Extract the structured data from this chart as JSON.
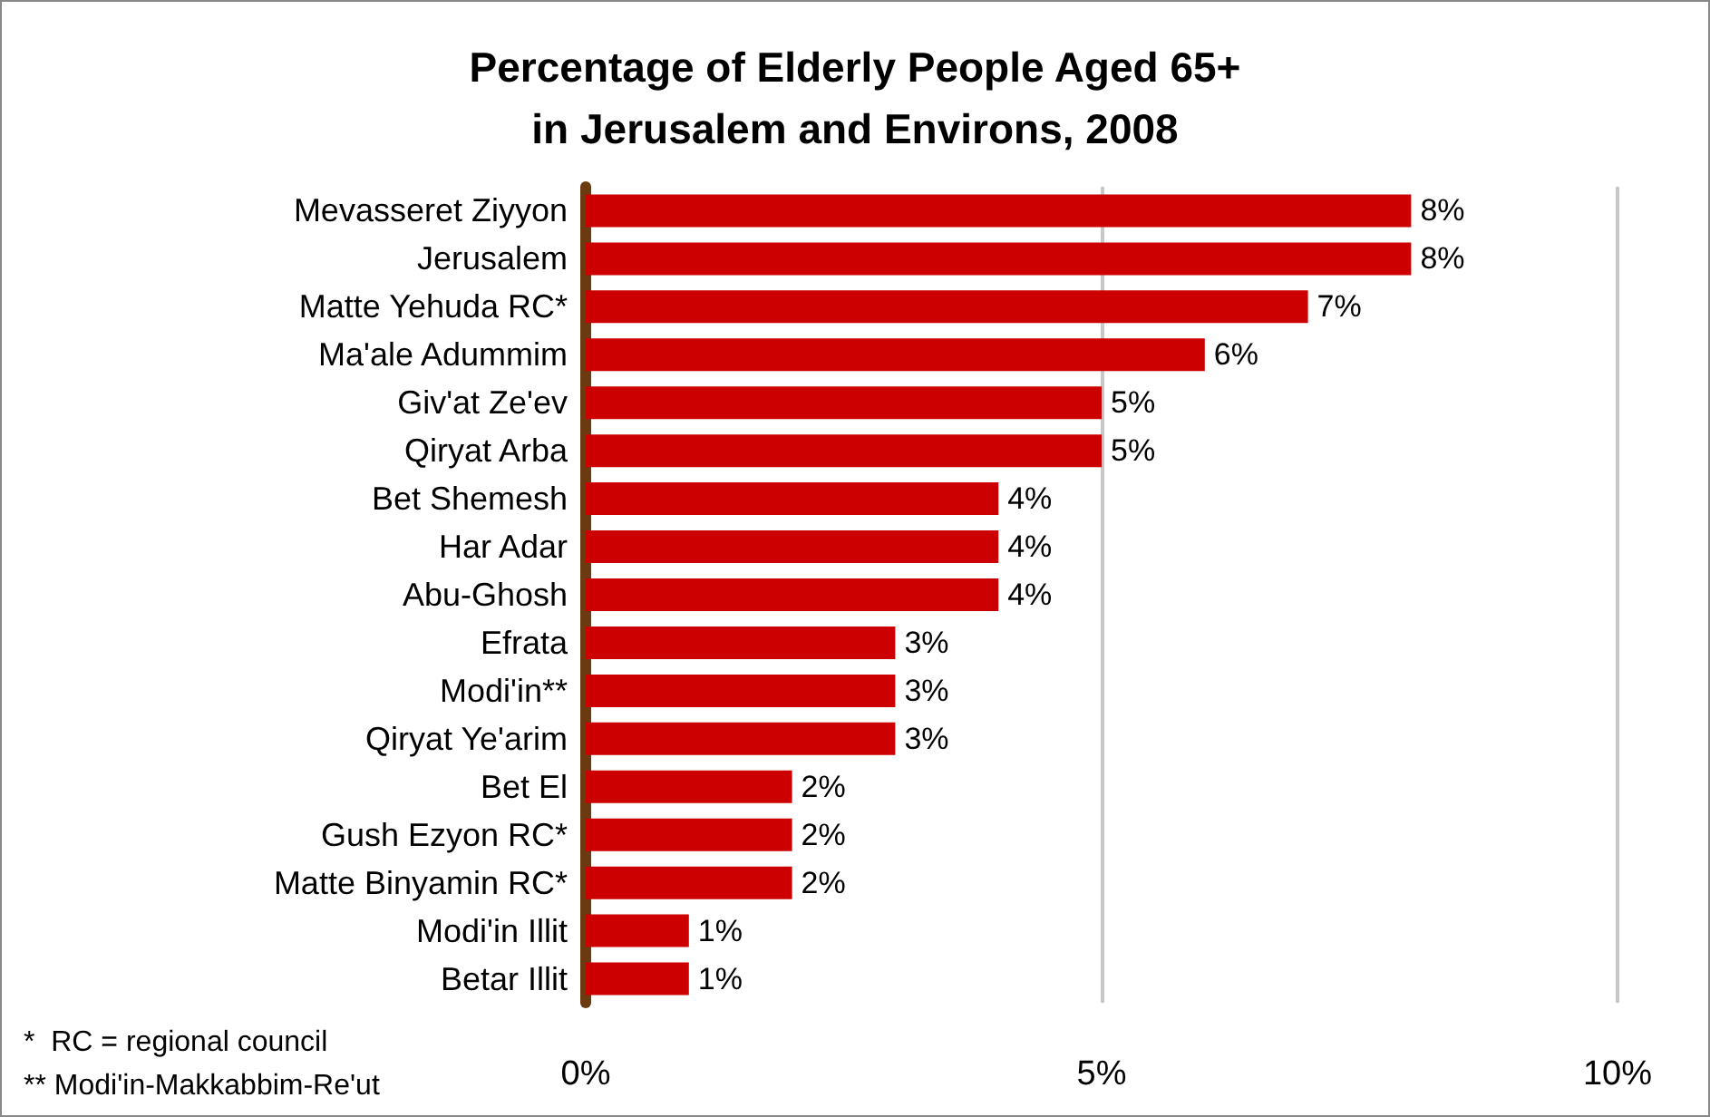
{
  "chart_data": {
    "type": "bar",
    "orientation": "horizontal",
    "title": "Percentage of Elderly People Aged 65+\nin Jerusalem and Environs, 2008",
    "categories": [
      "Mevasseret Ziyyon",
      "Jerusalem",
      "Matte Yehuda RC*",
      "Ma'ale Adummim",
      "Giv'at Ze'ev",
      "Qiryat Arba",
      "Bet Shemesh",
      "Har Adar",
      "Abu-Ghosh",
      "Efrata",
      "Modi'in**",
      "Qiryat Ye'arim",
      "Bet El",
      "Gush Ezyon RC*",
      "Matte Binyamin RC*",
      "Modi'in Illit",
      "Betar Illit"
    ],
    "values": [
      8,
      8,
      7,
      6,
      5,
      5,
      4,
      4,
      4,
      3,
      3,
      3,
      2,
      2,
      2,
      1,
      1
    ],
    "value_labels": [
      "8%",
      "8%",
      "7%",
      "6%",
      "5%",
      "5%",
      "4%",
      "4%",
      "4%",
      "3%",
      "3%",
      "3%",
      "2%",
      "2%",
      "2%",
      "1%",
      "1%"
    ],
    "color": "#cc0000",
    "xlim": [
      0,
      10
    ],
    "xticks": [
      {
        "value": 0,
        "label": "0%"
      },
      {
        "value": 5,
        "label": "5%"
      },
      {
        "value": 10,
        "label": "10%"
      }
    ],
    "grid": "x",
    "annotations": [
      "*  RC = regional council",
      "** Modi'in-Makkabbim-Re'ut"
    ]
  }
}
